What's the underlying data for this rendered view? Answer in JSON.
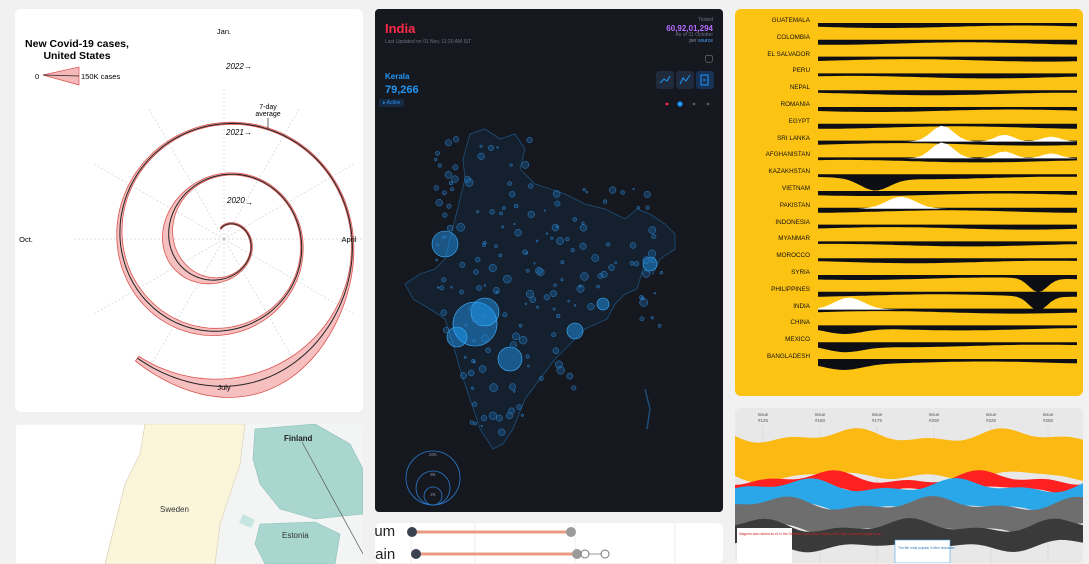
{
  "spiral": {
    "title_line1": "New Covid-19 cases,",
    "title_line2": "United States",
    "legend_zero": "0",
    "legend_max": "150K cases",
    "month_jan": "Jan.",
    "month_april": "April",
    "month_july": "July",
    "month_oct": "Oct.",
    "year_2020": "2020",
    "year_2021": "2021",
    "year_2022": "2022",
    "arrow": "→",
    "avg_line1": "7-day",
    "avg_line2": "average",
    "colors": {
      "band_fill": "#f6b9b9",
      "band_stroke": "#d9534f",
      "line": "#222222"
    }
  },
  "nordic_map": {
    "label_finland": "Finland",
    "label_sweden": "Sweden",
    "label_estonia": "Estonia"
  },
  "india": {
    "title": "India",
    "last_updated": "Last Updated on 01 Nov, 11:20 AM IST",
    "tested_label": "Tested",
    "tested_value": "60,92,01,294",
    "tested_asof": "As of 31 October",
    "tested_per": "per",
    "tested_source": "source",
    "state_name": "Kerala",
    "state_value": "79,266",
    "state_metric": "Active",
    "legend_values": [
      "20K",
      "8K",
      "2K"
    ],
    "colors": {
      "title": "#ff2b4a",
      "accent": "#2196f3",
      "tested": "#b66dff",
      "bg": "#16181f"
    }
  },
  "slider": {
    "label1": "ium",
    "label2": "tain"
  },
  "ridgeline": {
    "countries": [
      "GUATEMALA",
      "COLOMBIA",
      "EL SALVADOR",
      "PERU",
      "NEPAL",
      "ROMANIA",
      "EGYPT",
      "SRI LANKA",
      "AFGHANISTAN",
      "KAZAKHSTAN",
      "VIETNAM",
      "PAKISTAN",
      "INDONESIA",
      "MYANMAR",
      "MOROCCO",
      "SYRIA",
      "PHILIPPINES",
      "INDIA",
      "CHINA",
      "MEXICO",
      "BANGLADESH"
    ],
    "colors": {
      "bg": "#fcc312",
      "fill": "#0d0d14",
      "highlight": "#ffffff"
    }
  },
  "stream": {
    "issues": [
      "Issue #125",
      "Issue #150",
      "Issue #175",
      "Issue #200",
      "Issue #225",
      "Issue #250"
    ],
    "note_left": "Magneto was ranked as #1 in the Greatest Comic Book Villains of All Time and was thought to be...",
    "note_right": "The 5th most popular X-Men character..."
  }
}
